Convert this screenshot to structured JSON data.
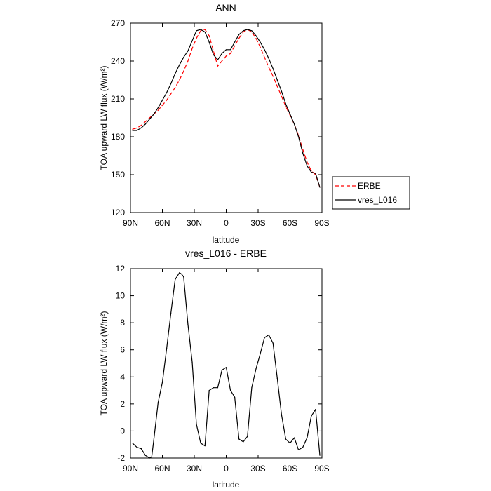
{
  "chart_data": [
    {
      "type": "line",
      "title": "ANN",
      "xlabel": "latitude",
      "ylabel": "TOA upward LW flux (W/m²)",
      "xlim": [
        90,
        -90
      ],
      "ylim": [
        120,
        270
      ],
      "x_ticks": [
        90,
        60,
        30,
        0,
        -30,
        -60,
        -90
      ],
      "x_tick_labels": [
        "90N",
        "60N",
        "30N",
        "0",
        "30S",
        "60S",
        "90S"
      ],
      "y_ticks": [
        120,
        150,
        180,
        210,
        240,
        270
      ],
      "y_tick_labels": [
        "120",
        "150",
        "180",
        "210",
        "240",
        "270"
      ],
      "grid": false,
      "legend_position": "right",
      "series": [
        {
          "name": "ERBE",
          "color": "#ff0000",
          "dash": "dashed",
          "x": [
            88,
            84,
            80,
            76,
            72,
            68,
            64,
            60,
            56,
            52,
            48,
            44,
            40,
            36,
            32,
            28,
            24,
            20,
            16,
            12,
            8,
            4,
            0,
            -4,
            -8,
            -12,
            -16,
            -20,
            -24,
            -28,
            -32,
            -36,
            -40,
            -44,
            -48,
            -52,
            -56,
            -60,
            -64,
            -68,
            -72,
            -76,
            -80,
            -84,
            -88
          ],
          "y": [
            186,
            187,
            189,
            192,
            195,
            198,
            201,
            205,
            209,
            214,
            219,
            225,
            232,
            240,
            250,
            258,
            264,
            265,
            260,
            248,
            236,
            240,
            244,
            246,
            252,
            258,
            263,
            265,
            263,
            258,
            251,
            243,
            235,
            228,
            220,
            212,
            204,
            197,
            190,
            181,
            170,
            160,
            153,
            150,
            140
          ]
        },
        {
          "name": "vres_L016",
          "color": "#000000",
          "dash": "solid",
          "x": [
            88,
            84,
            80,
            76,
            72,
            68,
            64,
            60,
            56,
            52,
            48,
            44,
            40,
            36,
            32,
            28,
            24,
            20,
            16,
            12,
            8,
            4,
            0,
            -4,
            -8,
            -12,
            -16,
            -20,
            -24,
            -28,
            -32,
            -36,
            -40,
            -44,
            -48,
            -52,
            -56,
            -60,
            -64,
            -68,
            -72,
            -76,
            -80,
            -84,
            -88
          ],
          "y": [
            185,
            185,
            187,
            190,
            194,
            198,
            203,
            209,
            215,
            222,
            230,
            237,
            243,
            248,
            256,
            264,
            265,
            263,
            255,
            245,
            241,
            246,
            249,
            249,
            255,
            261,
            264,
            265,
            264,
            260,
            255,
            249,
            242,
            234,
            225,
            216,
            206,
            198,
            190,
            180,
            167,
            157,
            152,
            151,
            140
          ]
        }
      ]
    },
    {
      "type": "line",
      "title": "vres_L016 - ERBE",
      "xlabel": "latitude",
      "ylabel": "TOA upward LW flux (W/m²)",
      "xlim": [
        90,
        -90
      ],
      "ylim": [
        -2,
        12
      ],
      "x_ticks": [
        90,
        60,
        30,
        0,
        -30,
        -60,
        -90
      ],
      "x_tick_labels": [
        "90N",
        "60N",
        "30N",
        "0",
        "30S",
        "60S",
        "90S"
      ],
      "y_ticks": [
        -2,
        0,
        2,
        4,
        6,
        8,
        10,
        12
      ],
      "y_tick_labels": [
        "-2",
        "0",
        "2",
        "4",
        "6",
        "8",
        "10",
        "12"
      ],
      "grid": false,
      "series": [
        {
          "color": "#000000",
          "dash": "solid",
          "x": [
            88,
            84,
            80,
            76,
            72,
            70,
            68,
            64,
            60,
            56,
            52,
            48,
            44,
            42,
            40,
            36,
            32,
            28,
            24,
            20,
            16,
            12,
            8,
            4,
            0,
            -4,
            -8,
            -12,
            -16,
            -20,
            -24,
            -28,
            -32,
            -36,
            -40,
            -44,
            -48,
            -52,
            -56,
            -60,
            -64,
            -68,
            -72,
            -76,
            -80,
            -84,
            -88
          ],
          "y": [
            -0.9,
            -1.2,
            -1.3,
            -1.8,
            -2.0,
            -1.9,
            -0.6,
            2.1,
            3.6,
            6.1,
            8.7,
            11.2,
            11.7,
            11.6,
            11.4,
            7.9,
            5.1,
            0.5,
            -0.9,
            -1.1,
            3.0,
            3.2,
            3.2,
            4.5,
            4.7,
            3.0,
            2.5,
            -0.6,
            -0.8,
            -0.4,
            3.2,
            4.6,
            5.7,
            6.9,
            7.1,
            6.5,
            3.9,
            1.2,
            -0.6,
            -0.9,
            -0.5,
            -1.4,
            -1.2,
            -0.5,
            1.1,
            1.6,
            -1.8
          ]
        }
      ]
    }
  ]
}
